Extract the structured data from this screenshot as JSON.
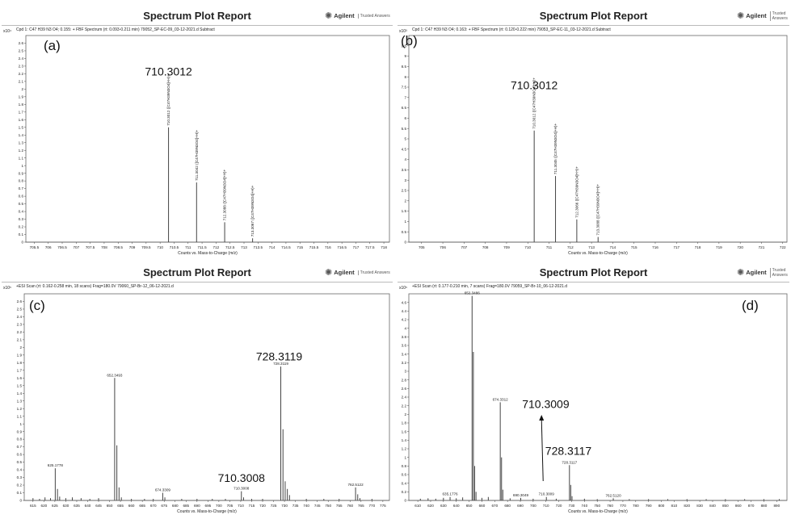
{
  "colors": {
    "line": "#444444",
    "frame": "#666666",
    "text": "#222222"
  },
  "panels": [
    {
      "id": "a",
      "report_title": "Spectrum Plot Report",
      "brand": "Agilent",
      "brand_tag": "Trusted Answers",
      "scan_header": "Cpd 1: C47 H39 N3 O4; 0.155: + FBF Spectrum (rt: 0.093-0.211 min) 79052_SP-EC-09_03-12-2021.d  Subtract",
      "exponent": "x10⁴",
      "panel_label": "(a)",
      "callouts": [
        {
          "text": "710.3012",
          "x": 710.3012,
          "y": 2.18
        }
      ],
      "chart_data": {
        "type": "bar",
        "xlabel": "Counts vs. Mass-to-Charge (m/z)",
        "xlim": [
          705.2,
          718.2
        ],
        "ylim": [
          0,
          2.7
        ],
        "xticks": [
          705.5,
          706,
          706.5,
          707,
          707.5,
          708,
          708.5,
          709,
          709.5,
          710,
          710.5,
          711,
          711.5,
          712,
          712.5,
          713,
          713.5,
          714,
          714.5,
          715,
          715.5,
          716,
          716.5,
          717,
          717.5,
          718
        ],
        "yticks": [
          0,
          0.1,
          0.2,
          0.3,
          0.4,
          0.5,
          0.6,
          0.7,
          0.8,
          0.9,
          1,
          1.1,
          1.2,
          1.3,
          1.4,
          1.5,
          1.6,
          1.7,
          1.8,
          1.9,
          2,
          2.1,
          2.2,
          2.3,
          2.4,
          2.5,
          2.6
        ],
        "peaks": [
          {
            "x": 710.3012,
            "y": 1.5,
            "label": "710.3012 ([C47H39N3O4]+H)+"
          },
          {
            "x": 711.3042,
            "y": 0.78,
            "label": "711.3042 ([C47H39N3O4]+H)+"
          },
          {
            "x": 712.3088,
            "y": 0.26,
            "label": "712.3088 ([C47H39N3O4]+H)+"
          },
          {
            "x": 713.3067,
            "y": 0.05,
            "label": "713.3067 ([C47H39N3O4]+H)+"
          }
        ]
      }
    },
    {
      "id": "b",
      "report_title": "Spectrum Plot Report",
      "brand": "Agilent",
      "brand_tag": "Trusted Answers",
      "scan_header": "Cpd 1: C47 H39 N3 O4; 0.163: + FBF Spectrum (rt: 0.120-0.222 min) 79053_SP-EC-11_03-12-2021.d  Subtract",
      "exponent": "x10³",
      "panel_label": "(b)",
      "callouts": [
        {
          "text": "710.3012",
          "x": 710.3012,
          "y": 7.4
        }
      ],
      "chart_data": {
        "type": "bar",
        "xlabel": "Counts vs. Mass-to-Charge (m/z)",
        "xlim": [
          704.4,
          722.2
        ],
        "ylim": [
          0,
          10
        ],
        "xticks": [
          705,
          706,
          707,
          708,
          709,
          710,
          711,
          712,
          713,
          714,
          715,
          716,
          717,
          718,
          719,
          720,
          721,
          722
        ],
        "yticks": [
          0,
          0.5,
          1,
          1.5,
          2,
          2.5,
          3,
          3.5,
          4,
          4.5,
          5,
          5.5,
          6,
          6.5,
          7,
          7.5,
          8,
          8.5,
          9,
          9.5
        ],
        "peaks": [
          {
            "x": 710.3012,
            "y": 5.4,
            "label": "710.3012 ([C47H39N3O4]+H)+"
          },
          {
            "x": 711.3045,
            "y": 3.2,
            "label": "711.3045 ([C47H39N3O4]+H)+"
          },
          {
            "x": 712.3066,
            "y": 1.1,
            "label": "712.3066 ([C47H39N3O4]+H)+"
          },
          {
            "x": 713.3088,
            "y": 0.25,
            "label": "713.3088 ([C47H39N3O4]+H)+"
          }
        ]
      }
    },
    {
      "id": "c",
      "report_title": "Spectrum Plot Report",
      "brand": "Agilent",
      "brand_tag": "Trusted Answers",
      "scan_header": "+ESI Scan (rt: 0.162-0.258 min, 18 scans) Frag=180.0V 79060_SP-Br-12_06-12-2021.d",
      "exponent": "x10⁵",
      "panel_label": "(c)",
      "callouts": [
        {
          "text": "728.3119",
          "x": 728.3119,
          "y": 1.83
        },
        {
          "text": "710.3008",
          "x": 710.3008,
          "y": 0.24
        }
      ],
      "chart_data": {
        "type": "bar",
        "xlabel": "Counts vs. Mass-to-Charge (m/z)",
        "xlim": [
          611,
          778
        ],
        "ylim": [
          0,
          2.7
        ],
        "xticks": [
          615,
          620,
          625,
          630,
          635,
          640,
          645,
          650,
          655,
          660,
          665,
          670,
          675,
          680,
          685,
          690,
          695,
          700,
          705,
          710,
          715,
          720,
          725,
          730,
          735,
          740,
          745,
          750,
          755,
          760,
          765,
          770,
          775
        ],
        "yticks": [
          0,
          0.1,
          0.2,
          0.3,
          0.4,
          0.5,
          0.6,
          0.7,
          0.8,
          0.9,
          1,
          1.1,
          1.2,
          1.3,
          1.4,
          1.5,
          1.6,
          1.7,
          1.8,
          1.9,
          2,
          2.1,
          2.2,
          2.3,
          2.4,
          2.5,
          2.6
        ],
        "peaks": [
          {
            "x": 615,
            "y": 0.03
          },
          {
            "x": 618,
            "y": 0.02
          },
          {
            "x": 620.5,
            "y": 0.04
          },
          {
            "x": 623,
            "y": 0.03
          },
          {
            "x": 625.1778,
            "y": 0.42,
            "label": "625.1778"
          },
          {
            "x": 626.2,
            "y": 0.15
          },
          {
            "x": 627.2,
            "y": 0.05
          },
          {
            "x": 630,
            "y": 0.03
          },
          {
            "x": 633,
            "y": 0.04
          },
          {
            "x": 637,
            "y": 0.03
          },
          {
            "x": 641,
            "y": 0.02
          },
          {
            "x": 645,
            "y": 0.03
          },
          {
            "x": 652.3493,
            "y": 1.6,
            "label": "652.3493"
          },
          {
            "x": 653.35,
            "y": 0.72
          },
          {
            "x": 654.35,
            "y": 0.17
          },
          {
            "x": 655.4,
            "y": 0.04
          },
          {
            "x": 660,
            "y": 0.02
          },
          {
            "x": 666,
            "y": 0.02
          },
          {
            "x": 670,
            "y": 0.02
          },
          {
            "x": 674.3309,
            "y": 0.1,
            "label": "674.3309"
          },
          {
            "x": 675.3,
            "y": 0.04
          },
          {
            "x": 683,
            "y": 0.02
          },
          {
            "x": 690,
            "y": 0.02
          },
          {
            "x": 697,
            "y": 0.02
          },
          {
            "x": 703,
            "y": 0.02
          },
          {
            "x": 710.3008,
            "y": 0.12,
            "label": "710.3008"
          },
          {
            "x": 711.3,
            "y": 0.04
          },
          {
            "x": 715,
            "y": 0.02
          },
          {
            "x": 720,
            "y": 0.02
          },
          {
            "x": 728.3119,
            "y": 1.75,
            "label": "728.3119"
          },
          {
            "x": 729.32,
            "y": 0.93
          },
          {
            "x": 730.32,
            "y": 0.25
          },
          {
            "x": 731.32,
            "y": 0.15
          },
          {
            "x": 732.3,
            "y": 0.07
          },
          {
            "x": 740,
            "y": 0.02
          },
          {
            "x": 748,
            "y": 0.02
          },
          {
            "x": 755,
            "y": 0.02
          },
          {
            "x": 762.5122,
            "y": 0.17,
            "label": "762.5122"
          },
          {
            "x": 763.5,
            "y": 0.08
          },
          {
            "x": 764.5,
            "y": 0.03
          },
          {
            "x": 770,
            "y": 0.02
          }
        ]
      }
    },
    {
      "id": "d",
      "report_title": "Spectrum Plot Report",
      "brand": "Agilent",
      "brand_tag": "Trusted Answers",
      "scan_header": "+ESI Scan (rt: 0.177-0.210 min, 7 scans) Frag=180.0V 79059_SP-Br-10_06-12-2021.d",
      "exponent": "x10⁵",
      "panel_label": "(d)",
      "callouts": [
        {
          "text": "710.3009",
          "x": 710.3009,
          "y": 2.15
        },
        {
          "text": "728.3117",
          "x": 728.3117,
          "y": 1.06
        }
      ],
      "chart_data": {
        "type": "bar",
        "xlabel": "Counts vs. Mass-to-Charge (m/z)",
        "xlim": [
          603,
          898
        ],
        "ylim": [
          0,
          4.8
        ],
        "xticks": [
          610,
          620,
          630,
          640,
          650,
          660,
          670,
          680,
          690,
          700,
          710,
          720,
          730,
          740,
          750,
          760,
          770,
          780,
          790,
          800,
          810,
          820,
          830,
          840,
          850,
          860,
          870,
          880,
          890
        ],
        "yticks": [
          0,
          0.2,
          0.4,
          0.6,
          0.8,
          1,
          1.2,
          1.4,
          1.6,
          1.8,
          2,
          2.2,
          2.4,
          2.6,
          2.8,
          3,
          3.2,
          3.4,
          3.6,
          3.8,
          4,
          4.2,
          4.4,
          4.6
        ],
        "peaks": [
          {
            "x": 612,
            "y": 0.04
          },
          {
            "x": 618,
            "y": 0.05
          },
          {
            "x": 624,
            "y": 0.04
          },
          {
            "x": 630,
            "y": 0.06
          },
          {
            "x": 635.1776,
            "y": 0.08,
            "label": "635.1776"
          },
          {
            "x": 640,
            "y": 0.05
          },
          {
            "x": 645,
            "y": 0.07
          },
          {
            "x": 652.3486,
            "y": 4.75,
            "label": "652.3486"
          },
          {
            "x": 653.35,
            "y": 3.45
          },
          {
            "x": 654.35,
            "y": 0.8
          },
          {
            "x": 655.4,
            "y": 0.2
          },
          {
            "x": 660,
            "y": 0.06
          },
          {
            "x": 665,
            "y": 0.08
          },
          {
            "x": 674.3312,
            "y": 2.28,
            "label": "674.3312"
          },
          {
            "x": 675.33,
            "y": 1.0
          },
          {
            "x": 676.33,
            "y": 0.25
          },
          {
            "x": 682,
            "y": 0.05
          },
          {
            "x": 690.3049,
            "y": 0.06,
            "label": "690.3049"
          },
          {
            "x": 700,
            "y": 0.04
          },
          {
            "x": 710.3009,
            "y": 0.08,
            "label": "710.3009"
          },
          {
            "x": 718,
            "y": 0.04
          },
          {
            "x": 728.3117,
            "y": 0.82,
            "label": "728.3117"
          },
          {
            "x": 729.32,
            "y": 0.36
          },
          {
            "x": 730.32,
            "y": 0.1
          },
          {
            "x": 740,
            "y": 0.04
          },
          {
            "x": 750,
            "y": 0.03
          },
          {
            "x": 762.512,
            "y": 0.05,
            "label": "762.5120"
          },
          {
            "x": 775,
            "y": 0.03
          },
          {
            "x": 790,
            "y": 0.03
          },
          {
            "x": 805,
            "y": 0.03
          },
          {
            "x": 820,
            "y": 0.03
          },
          {
            "x": 835,
            "y": 0.03
          },
          {
            "x": 850,
            "y": 0.03
          },
          {
            "x": 865,
            "y": 0.03
          },
          {
            "x": 880,
            "y": 0.03
          },
          {
            "x": 892,
            "y": 0.03
          }
        ]
      }
    }
  ]
}
